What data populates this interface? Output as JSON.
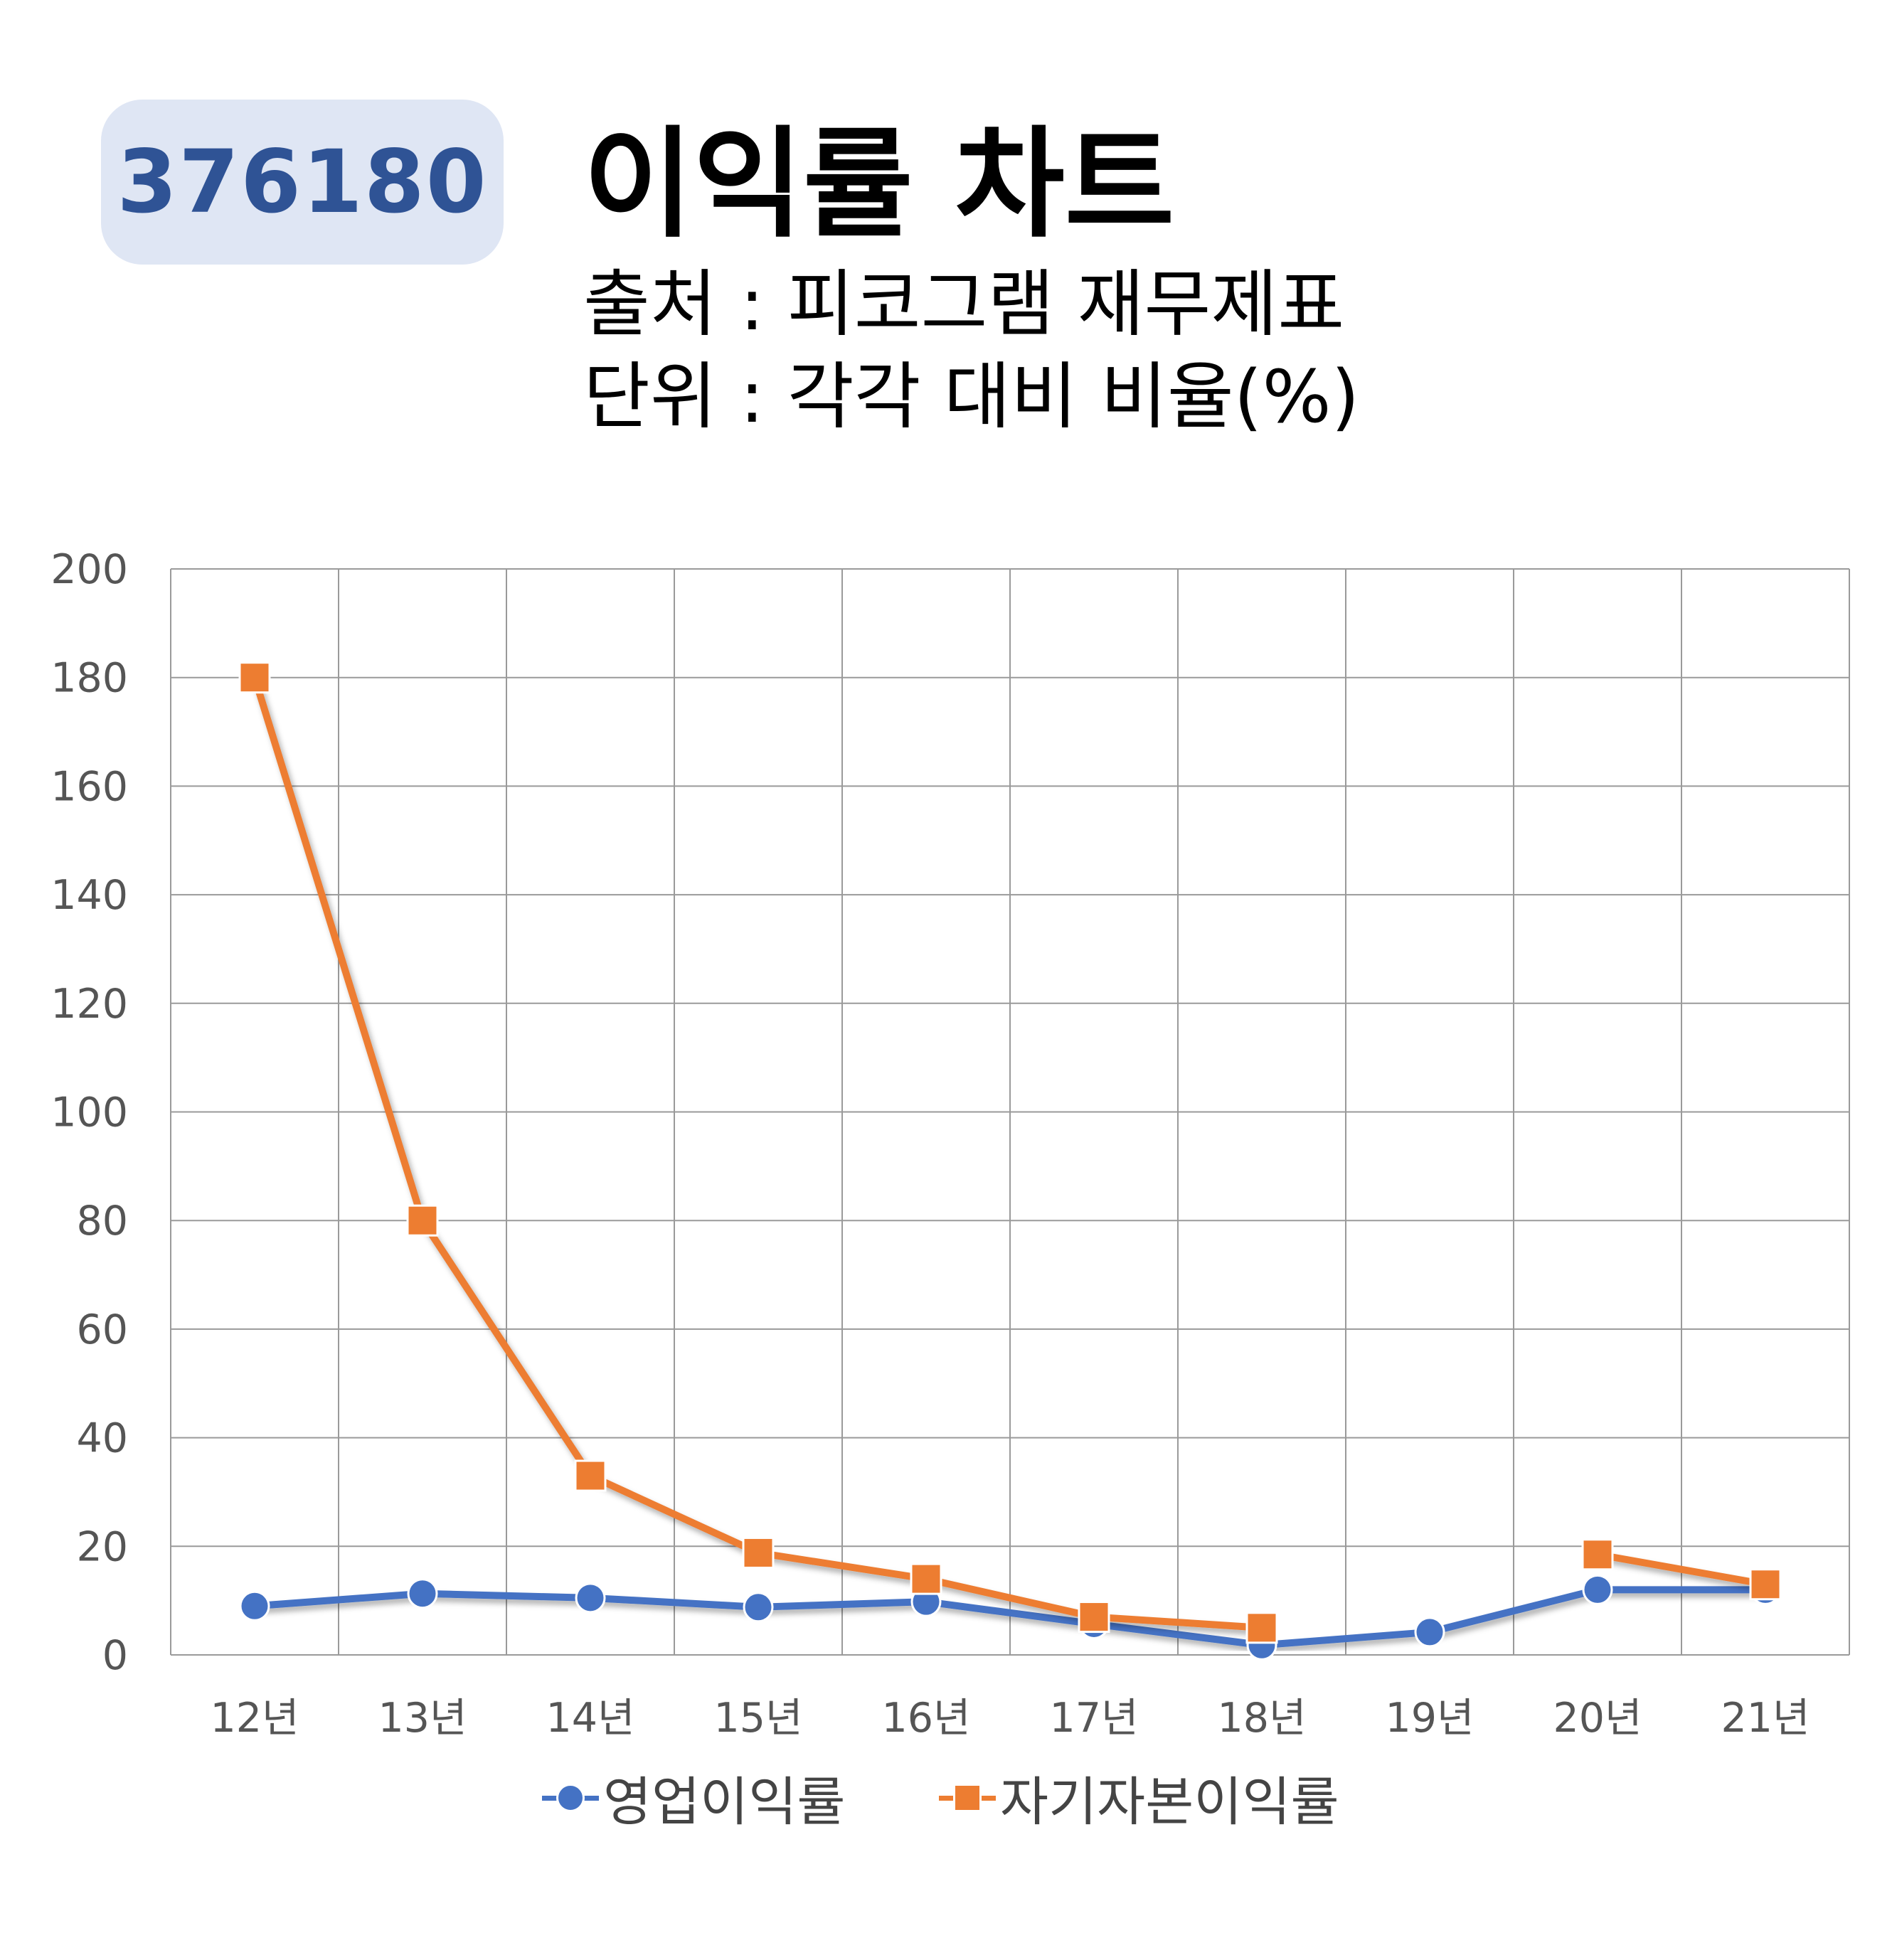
{
  "header": {
    "code": "376180",
    "title": "이익률 차트",
    "source": "출처 : 피코그램 재무제표",
    "unit": "단위 : 각각 대비 비율(%)"
  },
  "colors": {
    "badge_bg": "#dfe6f4",
    "badge_text": "#2f5395",
    "series1": "#4472c4",
    "series2": "#ed7d31",
    "grid": "#9a9a9a"
  },
  "chart_data": {
    "type": "line",
    "title": "",
    "xlabel": "",
    "ylabel": "",
    "categories": [
      "12년",
      "13년",
      "14년",
      "15년",
      "16년",
      "17년",
      "18년",
      "19년",
      "20년",
      "21년"
    ],
    "ylim": [
      0,
      200
    ],
    "yticks": [
      0,
      20,
      40,
      60,
      80,
      100,
      120,
      140,
      160,
      180,
      200
    ],
    "grid": true,
    "legend_position": "bottom",
    "series": [
      {
        "name": "영업이익률",
        "marker": "circle",
        "values": [
          9,
          11.3,
          10.5,
          8.8,
          9.8,
          5.7,
          1.8,
          4.2,
          12,
          12
        ]
      },
      {
        "name": "자기자본이익률",
        "marker": "square",
        "values": [
          180,
          80,
          33,
          18.8,
          14,
          7,
          5,
          null,
          18.5,
          13
        ]
      }
    ]
  }
}
